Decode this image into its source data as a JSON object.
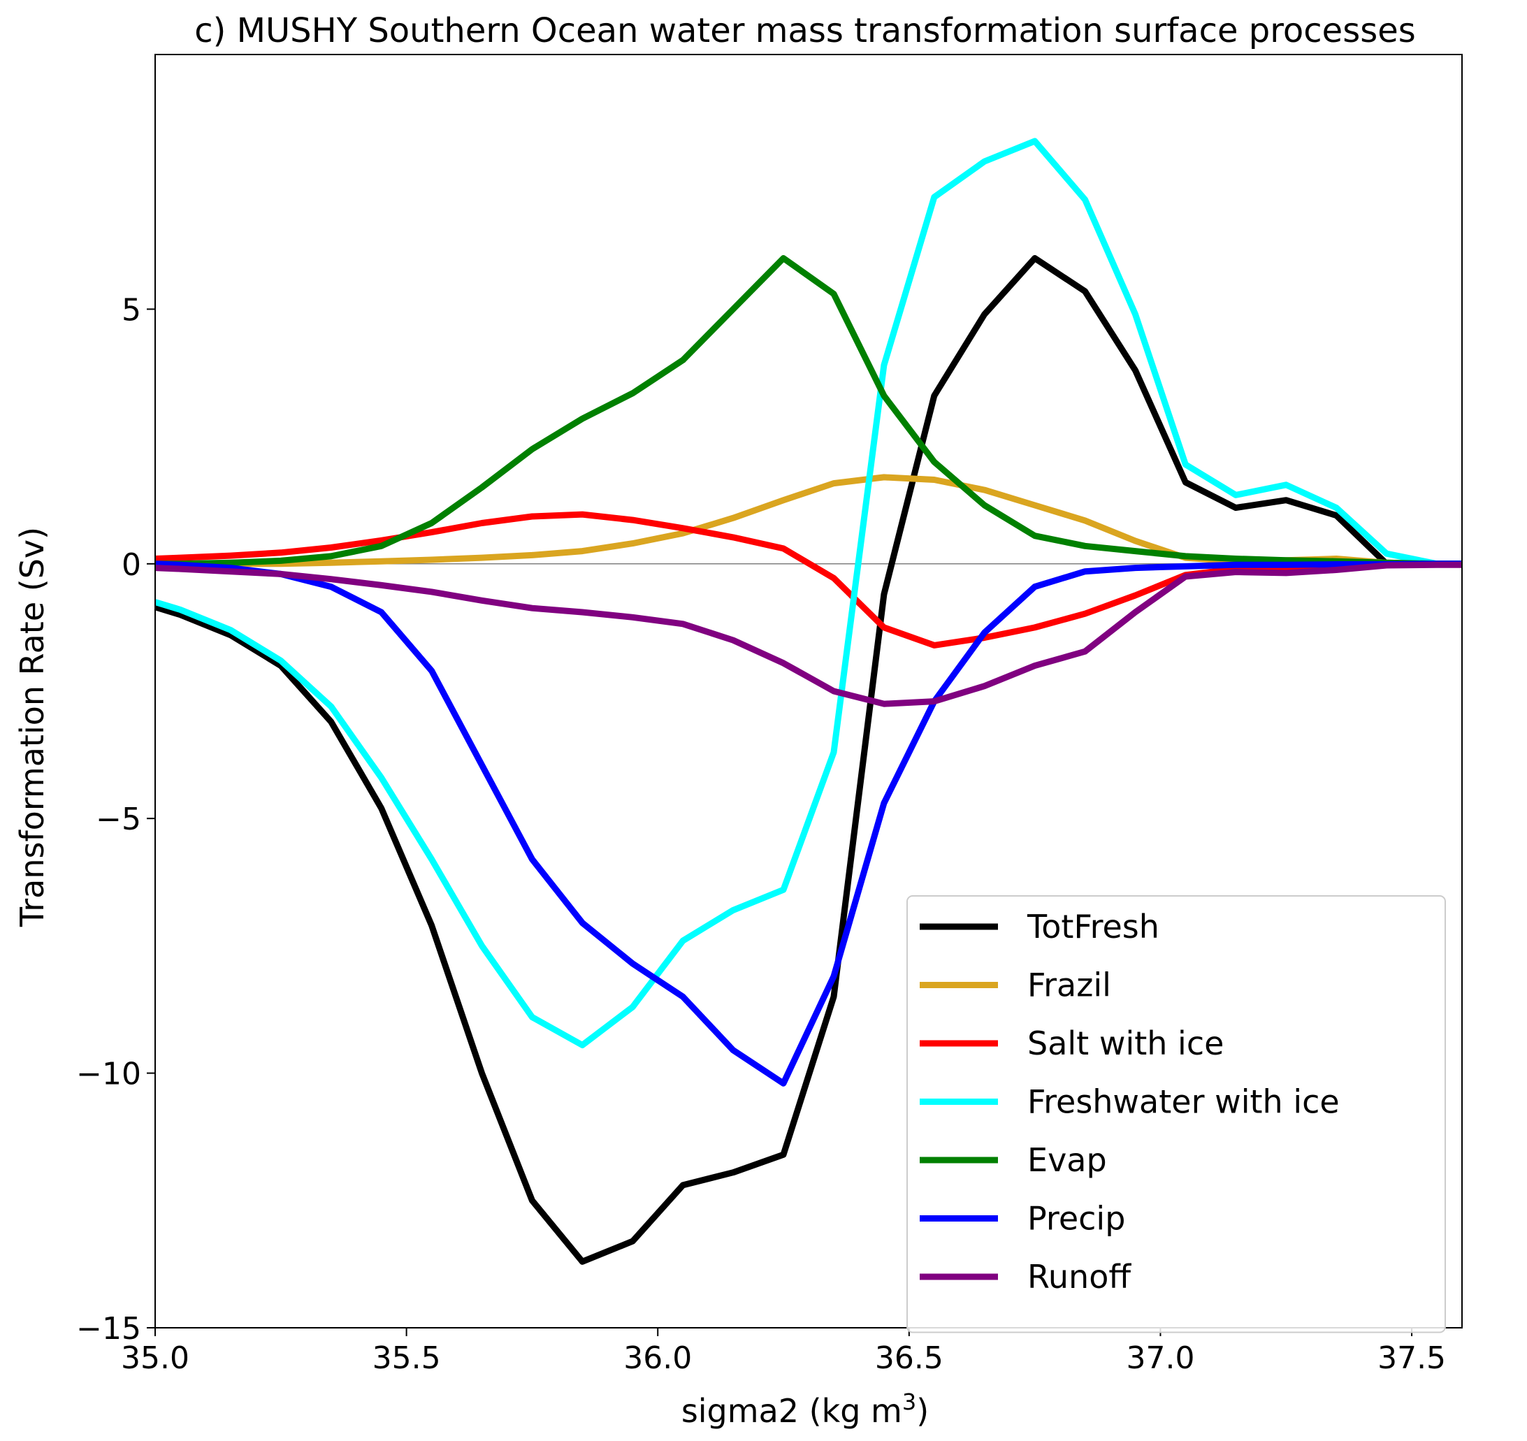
{
  "chart_data": {
    "type": "line",
    "title": "c) MUSHY Southern Ocean water mass transformation surface processes",
    "xlabel": "sigma2 (kg m",
    "xlabel_sup": "3",
    "xlabel_close": ")",
    "ylabel": "Transformation Rate (Sv)",
    "xlim": [
      35.0,
      37.6
    ],
    "ylim": [
      -15,
      10
    ],
    "xticks": [
      35.0,
      35.5,
      36.0,
      36.5,
      37.0,
      37.5
    ],
    "xtick_labels": [
      "35.0",
      "35.5",
      "36.0",
      "36.5",
      "37.0",
      "37.5"
    ],
    "yticks": [
      -15,
      -10,
      -5,
      0,
      5
    ],
    "ytick_labels": [
      "−15",
      "−10",
      "−5",
      "0",
      "5"
    ],
    "zero_line": true,
    "grid": false,
    "legend_position": "lower-right",
    "x": [
      35.0,
      35.05,
      35.15,
      35.25,
      35.35,
      35.45,
      35.55,
      35.65,
      35.75,
      35.85,
      35.95,
      36.05,
      36.15,
      36.25,
      36.35,
      36.45,
      36.55,
      36.65,
      36.75,
      36.85,
      36.95,
      37.05,
      37.15,
      37.25,
      37.35,
      37.45,
      37.55,
      37.6
    ],
    "series": [
      {
        "name": "TotFresh",
        "color": "#000000",
        "values": [
          -0.85,
          -1.0,
          -1.4,
          -2.0,
          -3.1,
          -4.8,
          -7.1,
          -10.0,
          -12.5,
          -13.7,
          -13.3,
          -12.2,
          -11.95,
          -11.6,
          -8.5,
          -0.6,
          3.3,
          4.9,
          6.0,
          5.35,
          3.8,
          1.6,
          1.1,
          1.25,
          0.95,
          0.0,
          0.0,
          0.0
        ]
      },
      {
        "name": "Frazil",
        "color": "#DAA520",
        "values": [
          0.0,
          0.0,
          0.0,
          0.0,
          0.02,
          0.05,
          0.08,
          0.12,
          0.17,
          0.25,
          0.4,
          0.6,
          0.9,
          1.25,
          1.58,
          1.7,
          1.65,
          1.45,
          1.15,
          0.85,
          0.45,
          0.12,
          0.05,
          0.07,
          0.1,
          0.02,
          0.0,
          0.0
        ]
      },
      {
        "name": "Salt with ice",
        "color": "#FF0000",
        "values": [
          0.1,
          0.12,
          0.16,
          0.22,
          0.32,
          0.46,
          0.62,
          0.8,
          0.93,
          0.97,
          0.86,
          0.7,
          0.52,
          0.3,
          -0.28,
          -1.25,
          -1.6,
          -1.45,
          -1.25,
          -0.98,
          -0.62,
          -0.22,
          -0.1,
          -0.07,
          -0.05,
          -0.02,
          0.0,
          0.0
        ]
      },
      {
        "name": "Freshwater with ice",
        "color": "#00FFFF",
        "values": [
          -0.75,
          -0.9,
          -1.3,
          -1.9,
          -2.8,
          -4.2,
          -5.8,
          -7.5,
          -8.9,
          -9.45,
          -8.7,
          -7.4,
          -6.8,
          -6.4,
          -3.7,
          3.9,
          7.2,
          7.9,
          8.3,
          7.15,
          4.9,
          1.95,
          1.35,
          1.55,
          1.1,
          0.2,
          0.0,
          0.0
        ]
      },
      {
        "name": "Evap",
        "color": "#008000",
        "values": [
          0.0,
          0.0,
          0.02,
          0.06,
          0.15,
          0.35,
          0.8,
          1.5,
          2.25,
          2.85,
          3.35,
          4.0,
          5.0,
          6.0,
          5.3,
          3.3,
          2.0,
          1.15,
          0.55,
          0.35,
          0.25,
          0.15,
          0.1,
          0.07,
          0.05,
          0.02,
          0.0,
          0.0
        ]
      },
      {
        "name": "Precip",
        "color": "#0000FF",
        "values": [
          0.0,
          -0.02,
          -0.08,
          -0.2,
          -0.45,
          -0.95,
          -2.1,
          -3.95,
          -5.8,
          -7.05,
          -7.85,
          -8.5,
          -9.55,
          -10.2,
          -8.1,
          -4.7,
          -2.7,
          -1.35,
          -0.45,
          -0.15,
          -0.08,
          -0.05,
          -0.02,
          -0.02,
          -0.01,
          -0.01,
          0.0,
          0.0
        ]
      },
      {
        "name": "Runoff",
        "color": "#800080",
        "values": [
          -0.08,
          -0.1,
          -0.15,
          -0.2,
          -0.3,
          -0.42,
          -0.55,
          -0.72,
          -0.87,
          -0.95,
          -1.05,
          -1.18,
          -1.5,
          -1.95,
          -2.5,
          -2.75,
          -2.7,
          -2.4,
          -2.0,
          -1.72,
          -0.95,
          -0.25,
          -0.16,
          -0.18,
          -0.12,
          -0.03,
          -0.02,
          -0.02
        ]
      }
    ]
  }
}
